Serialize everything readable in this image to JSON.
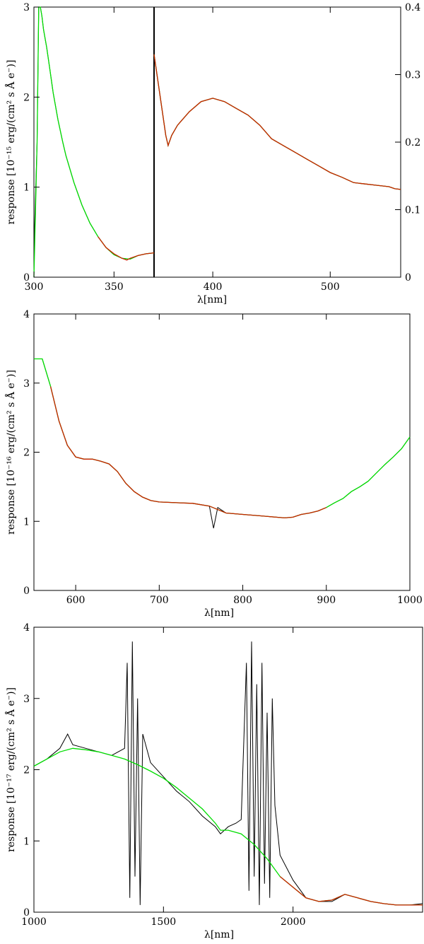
{
  "chart_data": [
    {
      "type": "line",
      "panel": "top",
      "ylabel": "response [10⁻¹⁵ erg/(cm² s Å e⁻)]",
      "xlabel": "λ[nm]",
      "subplots": [
        {
          "xlim": [
            300,
            375
          ],
          "ylim": [
            0,
            3
          ],
          "xticks": [
            300,
            350
          ],
          "yticks": [
            0,
            1,
            2,
            3
          ],
          "series": [
            {
              "color": "#000000",
              "x": [
                300,
                302,
                303,
                304,
                305,
                306,
                308,
                310,
                312,
                315,
                318,
                320,
                325,
                330,
                335,
                340,
                345,
                350,
                355,
                360,
                365,
                370,
                375
              ],
              "y": [
                0.3,
                1.5,
                3.0,
                3.0,
                2.9,
                2.75,
                2.55,
                2.3,
                2.05,
                1.75,
                1.5,
                1.35,
                1.05,
                0.8,
                0.6,
                0.45,
                0.33,
                0.25,
                0.21,
                0.2,
                0.24,
                0.26,
                0.27
              ]
            },
            {
              "color": "#00dd00",
              "x": [
                300,
                302,
                303,
                304,
                305,
                306,
                308,
                310,
                312,
                315,
                318,
                320,
                325,
                330,
                335,
                340,
                345,
                350,
                355,
                360,
                365,
                370,
                375
              ],
              "y": [
                0.0,
                1.5,
                3.0,
                3.0,
                2.9,
                2.75,
                2.55,
                2.3,
                2.05,
                1.75,
                1.5,
                1.35,
                1.05,
                0.8,
                0.6,
                0.45,
                0.33,
                0.25,
                0.21,
                0.2,
                0.24,
                0.26,
                0.27
              ]
            },
            {
              "color": "#cc2200",
              "x": [
                340,
                345,
                350,
                355,
                358,
                360,
                365,
                370,
                375
              ],
              "y": [
                0.45,
                0.33,
                0.26,
                0.21,
                0.19,
                0.21,
                0.24,
                0.26,
                0.27
              ]
            }
          ]
        },
        {
          "xlim": [
            350,
            560
          ],
          "ylim": [
            0,
            0.4
          ],
          "xticks": [
            400,
            500
          ],
          "yticks": [
            0,
            0.1,
            0.2,
            0.3,
            0.4
          ],
          "series": [
            {
              "color": "#000000",
              "x": [
                350,
                355,
                360,
                362,
                365,
                370,
                380,
                390,
                400,
                410,
                420,
                430,
                440,
                450,
                460,
                470,
                480,
                490,
                500,
                510,
                520,
                530,
                540,
                550,
                555,
                560
              ],
              "y": [
                0.33,
                0.27,
                0.21,
                0.195,
                0.21,
                0.225,
                0.245,
                0.26,
                0.265,
                0.26,
                0.25,
                0.24,
                0.225,
                0.205,
                0.195,
                0.185,
                0.175,
                0.165,
                0.155,
                0.148,
                0.14,
                0.138,
                0.136,
                0.134,
                0.131,
                0.13
              ]
            },
            {
              "color": "#00dd00",
              "x": [
                350,
                355,
                360,
                362,
                365,
                370,
                380,
                390,
                400,
                410,
                420,
                430,
                440,
                450,
                460,
                470,
                480,
                490,
                500,
                510,
                520,
                530,
                540,
                550,
                555,
                560
              ],
              "y": [
                0.33,
                0.27,
                0.21,
                0.195,
                0.21,
                0.225,
                0.245,
                0.26,
                0.265,
                0.26,
                0.25,
                0.24,
                0.225,
                0.205,
                0.195,
                0.185,
                0.175,
                0.165,
                0.155,
                0.148,
                0.14,
                0.138,
                0.136,
                0.134,
                0.131,
                0.13
              ]
            },
            {
              "color": "#cc2200",
              "x": [
                350,
                355,
                360,
                362,
                365,
                370,
                380,
                390,
                400,
                410,
                420,
                430,
                440,
                450,
                460,
                470,
                480,
                490,
                500,
                510,
                520,
                530,
                540,
                550,
                555,
                560
              ],
              "y": [
                0.33,
                0.27,
                0.21,
                0.195,
                0.21,
                0.225,
                0.245,
                0.26,
                0.265,
                0.26,
                0.25,
                0.24,
                0.225,
                0.205,
                0.195,
                0.185,
                0.175,
                0.165,
                0.155,
                0.148,
                0.14,
                0.138,
                0.136,
                0.134,
                0.131,
                0.13
              ]
            }
          ]
        }
      ]
    },
    {
      "type": "line",
      "panel": "middle",
      "ylabel": "response [10⁻¹⁶ erg/(cm² s Å e⁻)]",
      "xlabel": "λ[nm]",
      "xlim": [
        550,
        1000
      ],
      "ylim": [
        0,
        4
      ],
      "xticks": [
        600,
        700,
        800,
        900,
        1000
      ],
      "yticks": [
        0,
        1,
        2,
        3,
        4
      ],
      "series": [
        {
          "color": "#000000",
          "x": [
            550,
            560,
            570,
            580,
            590,
            600,
            610,
            620,
            630,
            640,
            650,
            660,
            670,
            680,
            690,
            700,
            720,
            740,
            760,
            765,
            770,
            780,
            800,
            820,
            840,
            850,
            860,
            870,
            880,
            890,
            900,
            910,
            920,
            930,
            940,
            950,
            960,
            970,
            980,
            990,
            1000
          ],
          "y": [
            3.35,
            3.35,
            2.95,
            2.45,
            2.1,
            1.93,
            1.9,
            1.9,
            1.87,
            1.83,
            1.72,
            1.55,
            1.43,
            1.35,
            1.3,
            1.28,
            1.27,
            1.26,
            1.22,
            0.9,
            1.2,
            1.12,
            1.1,
            1.08,
            1.06,
            1.05,
            1.06,
            1.1,
            1.12,
            1.15,
            1.2,
            1.27,
            1.33,
            1.43,
            1.5,
            1.58,
            1.7,
            1.82,
            1.93,
            2.05,
            2.22
          ]
        },
        {
          "color": "#00dd00",
          "x": [
            550,
            560,
            570,
            580,
            590,
            600,
            610,
            620,
            630,
            640,
            650,
            660,
            670,
            680,
            690,
            700,
            720,
            740,
            760,
            780,
            800,
            820,
            840,
            850,
            860,
            870,
            880,
            890,
            900,
            910,
            920,
            930,
            940,
            950,
            960,
            970,
            980,
            990,
            1000
          ],
          "y": [
            3.35,
            3.35,
            2.95,
            2.45,
            2.1,
            1.93,
            1.9,
            1.9,
            1.87,
            1.83,
            1.72,
            1.55,
            1.43,
            1.35,
            1.3,
            1.28,
            1.27,
            1.26,
            1.22,
            1.12,
            1.1,
            1.08,
            1.06,
            1.05,
            1.06,
            1.1,
            1.12,
            1.15,
            1.2,
            1.27,
            1.33,
            1.43,
            1.5,
            1.58,
            1.7,
            1.82,
            1.93,
            2.05,
            2.22
          ]
        },
        {
          "color": "#cc2200",
          "x": [
            570,
            580,
            590,
            600,
            610,
            620,
            630,
            640,
            650,
            660,
            670,
            680,
            690,
            700,
            720,
            740,
            760,
            780,
            800,
            820,
            840,
            850,
            860,
            870,
            880,
            890,
            900
          ],
          "y": [
            2.95,
            2.45,
            2.1,
            1.93,
            1.9,
            1.9,
            1.87,
            1.83,
            1.72,
            1.55,
            1.43,
            1.35,
            1.3,
            1.28,
            1.27,
            1.26,
            1.22,
            1.12,
            1.1,
            1.08,
            1.06,
            1.05,
            1.06,
            1.1,
            1.12,
            1.15,
            1.2
          ]
        }
      ]
    },
    {
      "type": "line",
      "panel": "bottom",
      "ylabel": "response [10⁻¹⁷ erg/(cm² s Å e⁻)]",
      "xlabel": "λ[nm]",
      "xlim": [
        1000,
        2500
      ],
      "ylim": [
        0,
        4
      ],
      "xticks": [
        1000,
        1500,
        2000
      ],
      "yticks": [
        0,
        1,
        2,
        3,
        4
      ],
      "series": [
        {
          "color": "#000000",
          "x": [
            1000,
            1050,
            1100,
            1130,
            1150,
            1200,
            1250,
            1300,
            1350,
            1360,
            1370,
            1380,
            1390,
            1400,
            1410,
            1420,
            1450,
            1500,
            1550,
            1600,
            1650,
            1700,
            1720,
            1750,
            1780,
            1800,
            1820,
            1830,
            1840,
            1850,
            1860,
            1870,
            1880,
            1890,
            1900,
            1910,
            1920,
            1930,
            1950,
            2000,
            2050,
            2100,
            2150,
            2200,
            2250,
            2300,
            2350,
            2400,
            2450,
            2500
          ],
          "y": [
            2.05,
            2.15,
            2.3,
            2.5,
            2.35,
            2.3,
            2.25,
            2.2,
            2.3,
            3.5,
            0.2,
            3.8,
            0.5,
            3.0,
            0.1,
            2.5,
            2.1,
            1.9,
            1.7,
            1.55,
            1.35,
            1.2,
            1.1,
            1.2,
            1.25,
            1.3,
            3.5,
            0.3,
            3.8,
            0.5,
            3.2,
            0.1,
            3.5,
            0.4,
            2.8,
            0.2,
            3.0,
            1.5,
            0.8,
            0.45,
            0.2,
            0.15,
            0.15,
            0.25,
            0.2,
            0.15,
            0.12,
            0.1,
            0.1,
            0.12
          ]
        },
        {
          "color": "#00dd00",
          "x": [
            1000,
            1050,
            1100,
            1150,
            1200,
            1250,
            1300,
            1350,
            1400,
            1450,
            1500,
            1550,
            1600,
            1650,
            1700,
            1720,
            1750,
            1800,
            1850,
            1900,
            1950,
            2000,
            2050,
            2100,
            2150,
            2200,
            2250,
            2300,
            2350,
            2400,
            2450,
            2500
          ],
          "y": [
            2.05,
            2.15,
            2.25,
            2.3,
            2.28,
            2.25,
            2.2,
            2.15,
            2.07,
            1.98,
            1.88,
            1.75,
            1.6,
            1.45,
            1.25,
            1.15,
            1.15,
            1.1,
            0.95,
            0.75,
            0.5,
            0.35,
            0.2,
            0.15,
            0.17,
            0.25,
            0.2,
            0.15,
            0.12,
            0.1,
            0.1,
            0.1
          ]
        },
        {
          "color": "#cc2200",
          "x": [
            1950,
            2000,
            2050,
            2100,
            2150,
            2200,
            2250,
            2300,
            2350,
            2400,
            2450,
            2500
          ],
          "y": [
            0.5,
            0.35,
            0.2,
            0.15,
            0.17,
            0.25,
            0.2,
            0.15,
            0.12,
            0.1,
            0.1,
            0.1
          ]
        }
      ]
    }
  ]
}
